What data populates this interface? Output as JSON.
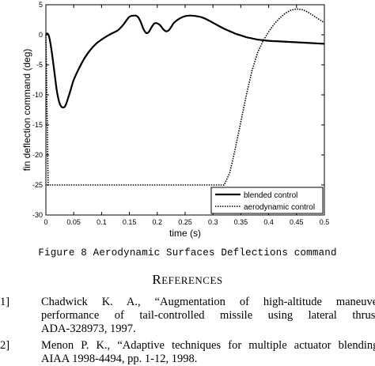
{
  "chart_data": {
    "type": "line",
    "title": "",
    "xlabel": "time (s)",
    "ylabel": "fin deflection command (deg)",
    "xlim": [
      0,
      0.5
    ],
    "ylim": [
      -30,
      5
    ],
    "xticks": [
      "0",
      "0.05",
      "0.1",
      "0.15",
      "0.2",
      "0.25",
      "0.3",
      "0.35",
      "0.4",
      "0.45",
      "0.5"
    ],
    "yticks": [
      "5",
      "0",
      "-5",
      "-10",
      "-15",
      "-20",
      "-25",
      "-30"
    ],
    "legend_position": "bottom-right",
    "series": [
      {
        "name": "blended control",
        "style": "solid",
        "x": [
          0,
          0.003,
          0.006,
          0.01,
          0.015,
          0.02,
          0.025,
          0.03,
          0.035,
          0.04,
          0.045,
          0.05,
          0.06,
          0.07,
          0.08,
          0.09,
          0.1,
          0.11,
          0.12,
          0.13,
          0.14,
          0.15,
          0.16,
          0.165,
          0.17,
          0.175,
          0.18,
          0.185,
          0.19,
          0.195,
          0.2,
          0.205,
          0.21,
          0.215,
          0.22,
          0.225,
          0.23,
          0.24,
          0.25,
          0.26,
          0.27,
          0.28,
          0.29,
          0.3,
          0.31,
          0.32,
          0.33,
          0.34,
          0.35,
          0.36,
          0.37,
          0.38,
          0.39,
          0.4,
          0.42,
          0.44,
          0.46,
          0.48,
          0.5
        ],
        "y": [
          0.1,
          0.2,
          -0.4,
          -2.5,
          -6.0,
          -9.5,
          -11.5,
          -12.1,
          -11.8,
          -10.5,
          -9.0,
          -7.5,
          -5.5,
          -3.8,
          -2.5,
          -1.5,
          -0.8,
          -0.2,
          0.3,
          0.8,
          1.8,
          3.0,
          3.2,
          3.0,
          2.2,
          1.0,
          0.3,
          0.5,
          1.3,
          1.9,
          1.9,
          1.6,
          1.0,
          0.6,
          0.7,
          1.3,
          2.0,
          2.7,
          3.1,
          3.2,
          3.1,
          2.9,
          2.5,
          2.0,
          1.5,
          1.0,
          0.6,
          0.2,
          -0.1,
          -0.4,
          -0.6,
          -0.8,
          -0.9,
          -1.0,
          -1.1,
          -1.2,
          -1.3,
          -1.4,
          -1.5
        ]
      },
      {
        "name": "aerodynamic control",
        "style": "dotted",
        "x": [
          0,
          0.002,
          0.004,
          0.32,
          0.33,
          0.34,
          0.35,
          0.36,
          0.37,
          0.38,
          0.39,
          0.4,
          0.41,
          0.42,
          0.43,
          0.44,
          0.45,
          0.46,
          0.47,
          0.48,
          0.49,
          0.5
        ],
        "y": [
          0,
          -12,
          -25,
          -25,
          -23,
          -19,
          -14.5,
          -10,
          -6,
          -3,
          -1,
          0.5,
          1.8,
          2.8,
          3.6,
          4.1,
          4.3,
          4.2,
          3.8,
          3.2,
          2.6,
          2.0
        ]
      }
    ]
  },
  "caption": "Figure 8 Aerodynamic Surfaces Deflections command",
  "references_heading": {
    "first": "R",
    "rest": "EFERENCES"
  },
  "references": [
    {
      "num": "1]",
      "lines": [
        "Chadwick K. A., “Augmentation of high-altitude maneuver",
        "performance of tail-controlled missile using lateral thrust,",
        "ADA-328973, 1997."
      ]
    },
    {
      "num": "2]",
      "lines": [
        "Menon P. K., “Adaptive techniques for multiple actuator blending,",
        "AIAA 1998-4494, pp. 1-12, 1998."
      ]
    }
  ]
}
